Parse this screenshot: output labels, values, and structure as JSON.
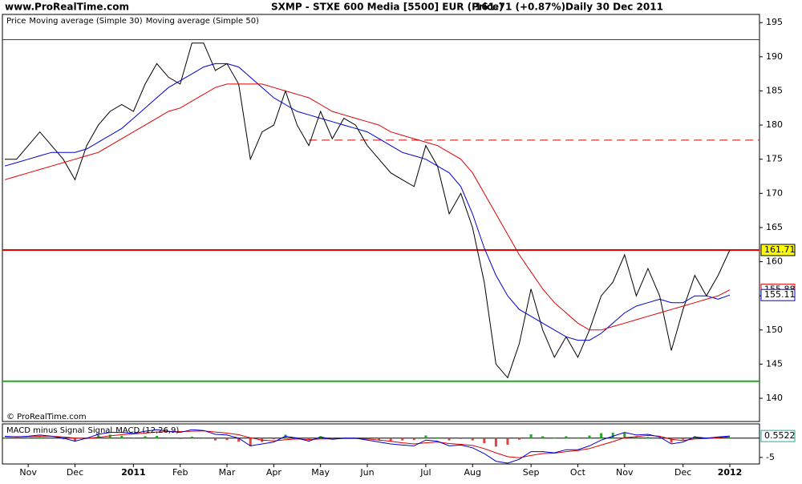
{
  "header": {
    "site": "www.ProRealTime.com",
    "title": "SXMP - STXE 600 Media [5500] EUR (Price)",
    "change": "161.71 (+0.87%)",
    "period": "Daily  30 Dec 2011",
    "copyright": "© ProRealTime.com"
  },
  "chart_data": [
    {
      "type": "line",
      "legend_title": "Price",
      "categories": [
        null,
        null,
        "Nov",
        null,
        null,
        null,
        "Dec",
        null,
        null,
        null,
        null,
        "2011",
        null,
        null,
        null,
        "Feb",
        null,
        null,
        null,
        "Mar",
        null,
        null,
        null,
        "Apr",
        null,
        null,
        null,
        "May",
        null,
        null,
        null,
        "Jun",
        null,
        null,
        null,
        null,
        "Jul",
        null,
        null,
        null,
        "Aug",
        null,
        null,
        null,
        null,
        "Sep",
        null,
        null,
        null,
        "Oct",
        null,
        null,
        null,
        "Nov",
        null,
        null,
        null,
        null,
        "Dec",
        null,
        null,
        null,
        "2012"
      ],
      "series": [
        {
          "name": "Price",
          "color": "#000000",
          "last_label": "161.71",
          "label_color": "#ffff00",
          "values": [
            175,
            175,
            177,
            179,
            177,
            175,
            172,
            177,
            180,
            182,
            183,
            182,
            186,
            189,
            187,
            186,
            192,
            192,
            188,
            189,
            186,
            175,
            179,
            180,
            185,
            180,
            177,
            182,
            178,
            181,
            180,
            177,
            175,
            173,
            172,
            171,
            177,
            174,
            167,
            170,
            165,
            157,
            145,
            143,
            148,
            156,
            150,
            146,
            149,
            146,
            150,
            155,
            157,
            161,
            155,
            159,
            155,
            147,
            153,
            158,
            155,
            158,
            161.71
          ]
        },
        {
          "name": "Moving average (Simple 30)",
          "color": "#0000cc",
          "last_label": "155.11",
          "label_color": "#ffffff",
          "values": [
            174,
            174.5,
            175,
            175.5,
            176,
            176,
            176,
            176.5,
            177.5,
            178.5,
            179.5,
            181,
            182.5,
            184,
            185.5,
            186.5,
            187.5,
            188.5,
            189,
            189,
            188.5,
            187,
            185.5,
            184,
            183,
            182,
            181.5,
            181,
            180.5,
            180,
            179.5,
            179,
            178,
            177,
            176,
            175.5,
            175,
            174,
            173,
            171,
            167,
            162,
            158,
            155,
            153,
            152,
            151,
            150,
            149,
            148.5,
            148.5,
            149.5,
            151,
            152.5,
            153.5,
            154,
            154.5,
            154,
            154,
            155,
            155,
            154.5,
            155.11
          ]
        },
        {
          "name": "Moving average (Simple 50)",
          "color": "#dd0000",
          "last_label": "155.88",
          "label_color": "#ffffff",
          "values": [
            172,
            172.5,
            173,
            173.5,
            174,
            174.5,
            175,
            175.5,
            176,
            177,
            178,
            179,
            180,
            181,
            182,
            182.5,
            183.5,
            184.5,
            185.5,
            186,
            186,
            186,
            186,
            185.5,
            185,
            184.5,
            184,
            183,
            182,
            181.5,
            181,
            180.5,
            180,
            179,
            178.5,
            178,
            177.5,
            177,
            176,
            175,
            173,
            170,
            167,
            164,
            161,
            158.5,
            156,
            154,
            152.5,
            151,
            150,
            150,
            150.5,
            151,
            151.5,
            152,
            152.5,
            153,
            153.5,
            154,
            154.5,
            155,
            155.88
          ]
        }
      ],
      "levels": [
        {
          "value": 192.5,
          "color": "#dd0000",
          "width": 1,
          "dashed": false
        },
        {
          "value": 177.8,
          "color": "#dd0000",
          "width": 1,
          "dashed": true
        },
        {
          "value": 161.7,
          "color": "#ee0000",
          "width": 2,
          "dashed": false
        },
        {
          "value": 142.5,
          "color": "#22aa22",
          "width": 2,
          "dashed": false
        }
      ],
      "ylim": [
        136.6,
        196.2
      ],
      "yticks": [
        140,
        145,
        150,
        155,
        160,
        165,
        170,
        175,
        180,
        185,
        190,
        195
      ]
    },
    {
      "type": "macd",
      "ylim": [
        -6.7,
        3.7
      ],
      "yticks": [
        -5
      ],
      "baseline": 0,
      "histogram": {
        "name": "MACD minus Signal",
        "color": "#22aa22",
        "neg_color": "#dd4444",
        "values": [
          0.1,
          -0.1,
          0.1,
          0.3,
          0,
          -0.3,
          -0.8,
          0.1,
          0.8,
          0.9,
          0.6,
          0.1,
          0.5,
          0.6,
          0.1,
          -0.2,
          0.4,
          0.1,
          -0.6,
          -0.5,
          -0.9,
          -2.1,
          -1,
          -0.3,
          0.9,
          0.2,
          -0.4,
          0.5,
          -0.1,
          0.1,
          0.1,
          -0.3,
          -0.5,
          -0.7,
          -0.6,
          -0.5,
          0.7,
          0.2,
          -0.6,
          -0.2,
          -0.6,
          -1.3,
          -2.2,
          -1.7,
          -0.4,
          1,
          0.5,
          0.1,
          0.5,
          0.2,
          0.7,
          1.3,
          1.4,
          1.4,
          0.4,
          0.3,
          -0.2,
          -1.2,
          -0.4,
          0.5,
          0.1,
          0.2,
          0.2
        ]
      },
      "series": [
        {
          "name": "Signal",
          "color": "#dd0000",
          "values": [
            0.4,
            0.4,
            0.4,
            0.5,
            0.5,
            0.3,
            0,
            -0.1,
            0.2,
            0.6,
            0.9,
            1.1,
            1.3,
            1.6,
            1.7,
            1.7,
            1.8,
            1.9,
            1.6,
            1.3,
            0.9,
            0.1,
            -0.5,
            -0.7,
            -0.4,
            -0.2,
            -0.4,
            -0.2,
            -0.2,
            -0.1,
            -0.1,
            -0.2,
            -0.5,
            -0.8,
            -1.2,
            -1.5,
            -1.2,
            -1,
            -1.4,
            -1.6,
            -1.9,
            -2.7,
            -3.8,
            -4.8,
            -5.1,
            -4.5,
            -4,
            -3.9,
            -3.5,
            -3.2,
            -2.7,
            -1.8,
            -0.9,
            0.1,
            0.4,
            0.7,
            0.5,
            -0.3,
            -0.6,
            -0.2,
            -0.1,
            0.1,
            0.35
          ]
        },
        {
          "name": "MACD (12,26,9)",
          "color": "#0000cc",
          "last_label": "0.5522",
          "values": [
            0.5,
            0.3,
            0.5,
            0.8,
            0.5,
            0,
            -0.8,
            0,
            1,
            1.5,
            1.5,
            1.2,
            1.8,
            2.2,
            1.8,
            1.5,
            2.2,
            2,
            1,
            0.8,
            0,
            -2,
            -1.5,
            -1,
            0.5,
            0,
            -0.8,
            0.3,
            -0.3,
            0,
            0,
            -0.5,
            -1,
            -1.5,
            -1.8,
            -2,
            -0.5,
            -0.8,
            -2,
            -1.8,
            -2.5,
            -4,
            -6,
            -6.5,
            -5.5,
            -3.5,
            -3.5,
            -3.8,
            -3,
            -3,
            -2,
            -0.5,
            0.5,
            1.5,
            0.8,
            1,
            0.3,
            -1.5,
            -1,
            0.3,
            0,
            0.3,
            0.5522
          ]
        }
      ]
    }
  ]
}
